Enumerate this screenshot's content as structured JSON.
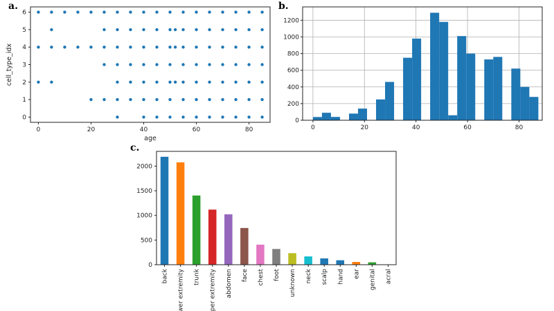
{
  "panels": {
    "a": "a.",
    "b": "b.",
    "c": "c."
  },
  "chart_data": [
    {
      "type": "scatter",
      "panel": "a.",
      "xlabel": "age",
      "ylabel": "cell_type_idx",
      "xlim": [
        -3,
        88
      ],
      "ylim": [
        -0.3,
        6.3
      ],
      "xticks": [
        0,
        20,
        40,
        60,
        80
      ],
      "yticks": [
        0,
        1,
        2,
        3,
        4,
        5,
        6
      ],
      "grid": false,
      "color": "#1f77b4",
      "rows": [
        {
          "y": 6,
          "x": [
            0,
            5,
            10,
            15,
            20,
            25,
            30,
            35,
            40,
            45,
            50,
            55,
            60,
            65,
            70,
            75,
            80,
            85
          ]
        },
        {
          "y": 5,
          "x": [
            5,
            25,
            30,
            35,
            40,
            45,
            50,
            52,
            55,
            60,
            65,
            70,
            75,
            80,
            85
          ]
        },
        {
          "y": 4,
          "x": [
            0,
            5,
            10,
            15,
            20,
            25,
            30,
            35,
            40,
            45,
            50,
            52,
            55,
            60,
            65,
            70,
            75,
            80,
            85
          ]
        },
        {
          "y": 3,
          "x": [
            25,
            30,
            35,
            40,
            45,
            50,
            55,
            60,
            65,
            70,
            75,
            80,
            85
          ]
        },
        {
          "y": 2,
          "x": [
            0,
            5,
            30,
            35,
            40,
            45,
            50,
            52,
            55,
            60,
            65,
            70,
            75,
            80,
            85
          ]
        },
        {
          "y": 1,
          "x": [
            20,
            25,
            30,
            35,
            40,
            45,
            50,
            55,
            60,
            65,
            70,
            75,
            80,
            85
          ]
        },
        {
          "y": 0,
          "x": [
            30,
            40,
            45,
            50,
            55,
            60,
            65,
            70,
            75,
            80,
            85
          ]
        }
      ]
    },
    {
      "type": "bar",
      "panel": "b.",
      "xlim": [
        -4,
        89
      ],
      "ylim": [
        0,
        1360
      ],
      "xticks": [
        0,
        20,
        40,
        60,
        80
      ],
      "yticks": [
        0,
        200,
        400,
        600,
        800,
        1000,
        1200
      ],
      "grid": true,
      "color": "#1f77b4",
      "bins": [
        {
          "x0": 0,
          "x1": 3.5,
          "value": 39
        },
        {
          "x0": 3.5,
          "x1": 7,
          "value": 90
        },
        {
          "x0": 7,
          "x1": 10.5,
          "value": 40
        },
        {
          "x0": 14,
          "x1": 17.5,
          "value": 80
        },
        {
          "x0": 17.5,
          "x1": 21,
          "value": 140
        },
        {
          "x0": 24.5,
          "x1": 28,
          "value": 250
        },
        {
          "x0": 28,
          "x1": 31.5,
          "value": 460
        },
        {
          "x0": 35,
          "x1": 38.5,
          "value": 750
        },
        {
          "x0": 38.5,
          "x1": 42,
          "value": 980
        },
        {
          "x0": 45.5,
          "x1": 49,
          "value": 1290
        },
        {
          "x0": 49,
          "x1": 52.5,
          "value": 1180
        },
        {
          "x0": 52.5,
          "x1": 56,
          "value": 60
        },
        {
          "x0": 56,
          "x1": 59.5,
          "value": 1010
        },
        {
          "x0": 59.5,
          "x1": 63,
          "value": 800
        },
        {
          "x0": 66.5,
          "x1": 70,
          "value": 730
        },
        {
          "x0": 70,
          "x1": 73.5,
          "value": 760
        },
        {
          "x0": 77,
          "x1": 80.5,
          "value": 620
        },
        {
          "x0": 80.5,
          "x1": 84,
          "value": 400
        },
        {
          "x0": 84,
          "x1": 87.5,
          "value": 280
        }
      ]
    },
    {
      "type": "bar",
      "panel": "c.",
      "ylim": [
        0,
        2300
      ],
      "yticks": [
        0,
        500,
        1000,
        1500,
        2000
      ],
      "grid": false,
      "categories": [
        "back",
        "lower extremity",
        "trunk",
        "upper extremity",
        "abdomen",
        "face",
        "chest",
        "foot",
        "unknown",
        "neck",
        "scalp",
        "hand",
        "ear",
        "genital",
        "acral"
      ],
      "values": [
        2190,
        2077,
        1404,
        1118,
        1022,
        745,
        407,
        319,
        234,
        168,
        128,
        90,
        56,
        48,
        7
      ],
      "colors": [
        "#1f77b4",
        "#ff7f0e",
        "#2ca02c",
        "#d62728",
        "#9467bd",
        "#8c564b",
        "#e377c2",
        "#7f7f7f",
        "#bcbd22",
        "#17becf",
        "#1f77b4",
        "#1f77b4",
        "#ff7f0e",
        "#2ca02c",
        "#d62728"
      ]
    }
  ]
}
